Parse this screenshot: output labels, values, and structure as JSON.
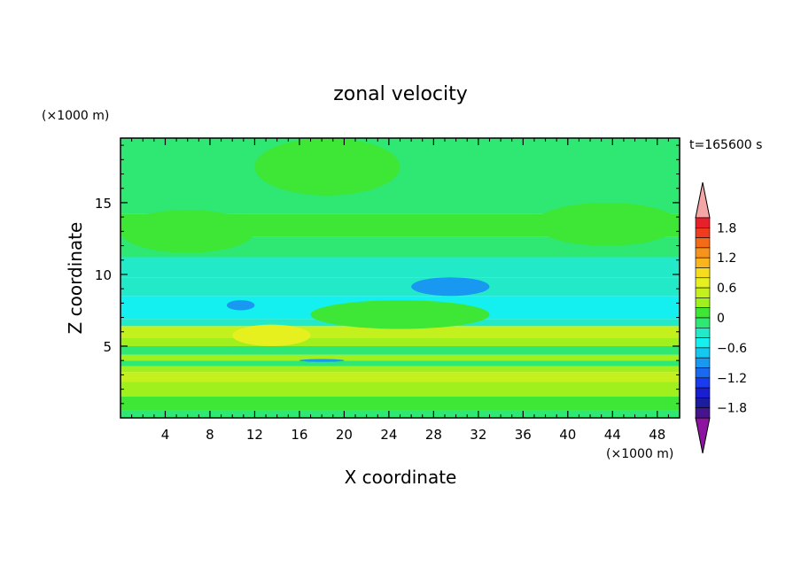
{
  "chart_data": {
    "type": "heatmap",
    "title": "zonal velocity",
    "xlabel": "X coordinate",
    "ylabel": "Z coordinate",
    "x_unit": "(×1000 m)",
    "y_unit": "(×1000 m)",
    "time_label": "t=165600 s",
    "xlim": [
      0,
      50
    ],
    "ylim": [
      0,
      19.5
    ],
    "x_ticks": [
      4,
      8,
      12,
      16,
      20,
      24,
      28,
      32,
      36,
      40,
      44,
      48
    ],
    "y_ticks": [
      5,
      10,
      15
    ],
    "colorbar": {
      "ticks": [
        1.8,
        1.2,
        0.6,
        0,
        -0.6,
        -1.2,
        -1.8
      ],
      "levels": [
        {
          "min": 1.8,
          "max": 2.0,
          "color": "#e8202a"
        },
        {
          "min": 1.6,
          "max": 1.8,
          "color": "#f03c1e"
        },
        {
          "min": 1.4,
          "max": 1.6,
          "color": "#f56a14"
        },
        {
          "min": 1.2,
          "max": 1.4,
          "color": "#f7921a"
        },
        {
          "min": 1.0,
          "max": 1.2,
          "color": "#f9b41e"
        },
        {
          "min": 0.8,
          "max": 1.0,
          "color": "#f6dc1e"
        },
        {
          "min": 0.6,
          "max": 0.8,
          "color": "#e6f01e"
        },
        {
          "min": 0.4,
          "max": 0.6,
          "color": "#c4f01e"
        },
        {
          "min": 0.2,
          "max": 0.4,
          "color": "#a0f01e"
        },
        {
          "min": 0.0,
          "max": 0.2,
          "color": "#3ee636"
        },
        {
          "min": -0.2,
          "max": 0.0,
          "color": "#2ee873"
        },
        {
          "min": -0.4,
          "max": -0.2,
          "color": "#22eac8"
        },
        {
          "min": -0.6,
          "max": -0.4,
          "color": "#14f0f0"
        },
        {
          "min": -0.8,
          "max": -0.6,
          "color": "#14c8f0"
        },
        {
          "min": -1.0,
          "max": -0.8,
          "color": "#1898f0"
        },
        {
          "min": -1.2,
          "max": -1.0,
          "color": "#1a6af0"
        },
        {
          "min": -1.4,
          "max": -1.2,
          "color": "#1a3cf0"
        },
        {
          "min": -1.6,
          "max": -1.4,
          "color": "#1a1ed2"
        },
        {
          "min": -1.8,
          "max": -1.6,
          "color": "#1c1c9e"
        },
        {
          "min": -2.0,
          "max": -1.8,
          "color": "#46148c"
        }
      ],
      "over_color": "#f4a6a6",
      "under_color": "#8c14a0"
    },
    "bands": [
      {
        "z": [
          0.0,
          0.5
        ],
        "value": -0.1
      },
      {
        "z": [
          0.5,
          1.5
        ],
        "value": 0.1
      },
      {
        "z": [
          1.5,
          2.5
        ],
        "value": 0.3
      },
      {
        "z": [
          2.5,
          3.2
        ],
        "value": 0.5
      },
      {
        "z": [
          3.2,
          3.6
        ],
        "value": 0.3
      },
      {
        "z": [
          3.6,
          4.0
        ],
        "value": -0.1
      },
      {
        "z": [
          4.0,
          4.4
        ],
        "value": 0.3
      },
      {
        "z": [
          4.4,
          5.0
        ],
        "value": -0.1
      },
      {
        "z": [
          5.0,
          5.6
        ],
        "value": 0.3
      },
      {
        "z": [
          5.6,
          6.4
        ],
        "value": 0.5
      },
      {
        "z": [
          6.4,
          6.9
        ],
        "value": -0.3
      },
      {
        "z": [
          6.9,
          8.5
        ],
        "value": -0.5
      },
      {
        "z": [
          8.5,
          9.8
        ],
        "value": -0.3
      },
      {
        "z": [
          9.8,
          11.2
        ],
        "value": -0.3
      },
      {
        "z": [
          11.2,
          12.6
        ],
        "value": -0.1
      },
      {
        "z": [
          12.6,
          14.2
        ],
        "value": 0.1
      },
      {
        "z": [
          14.2,
          17.0
        ],
        "value": -0.1
      },
      {
        "z": [
          17.0,
          19.5
        ],
        "value": -0.1
      }
    ],
    "features": [
      {
        "x": [
          16,
          20
        ],
        "z": [
          3.9,
          4.1
        ],
        "value": -0.9
      },
      {
        "x": [
          26,
          33
        ],
        "z": [
          8.5,
          9.8
        ],
        "value": -0.9
      },
      {
        "x": [
          9.5,
          12
        ],
        "z": [
          7.5,
          8.2
        ],
        "value": -0.9
      },
      {
        "x": [
          10,
          17
        ],
        "z": [
          5.0,
          6.5
        ],
        "value": 0.7
      },
      {
        "x": [
          17,
          33
        ],
        "z": [
          6.2,
          8.2
        ],
        "value": 0.1
      },
      {
        "x": [
          12,
          25
        ],
        "z": [
          15.5,
          19.5
        ],
        "value": 0.1
      },
      {
        "x": [
          0,
          12
        ],
        "z": [
          11.5,
          14.5
        ],
        "value": 0.1
      },
      {
        "x": [
          37,
          50
        ],
        "z": [
          12.0,
          15.0
        ],
        "value": 0.1
      }
    ]
  }
}
